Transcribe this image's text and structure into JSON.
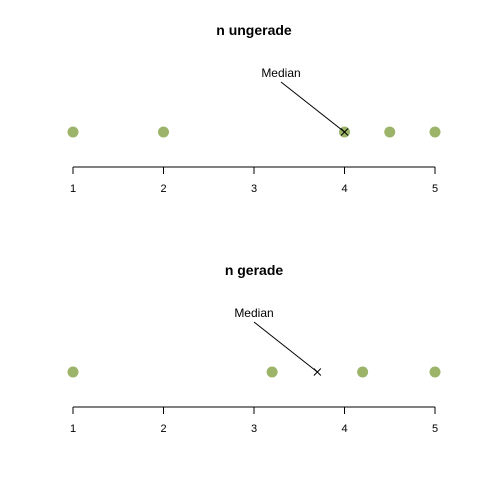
{
  "chart_data": [
    {
      "type": "scatter",
      "title": "n ungerade",
      "x": [
        1,
        2,
        4,
        4.5,
        5
      ],
      "median": 4,
      "annotation": "Median",
      "xlim": [
        1,
        5
      ],
      "xticks": [
        1,
        2,
        3,
        4,
        5
      ],
      "point_color": "#9BB46A",
      "grid": false
    },
    {
      "type": "scatter",
      "title": "n gerade",
      "x": [
        1,
        3.2,
        4.2,
        5
      ],
      "median": 3.7,
      "annotation": "Median",
      "xlim": [
        1,
        5
      ],
      "xticks": [
        1,
        2,
        3,
        4,
        5
      ],
      "point_color": "#9BB46A",
      "grid": false
    }
  ]
}
